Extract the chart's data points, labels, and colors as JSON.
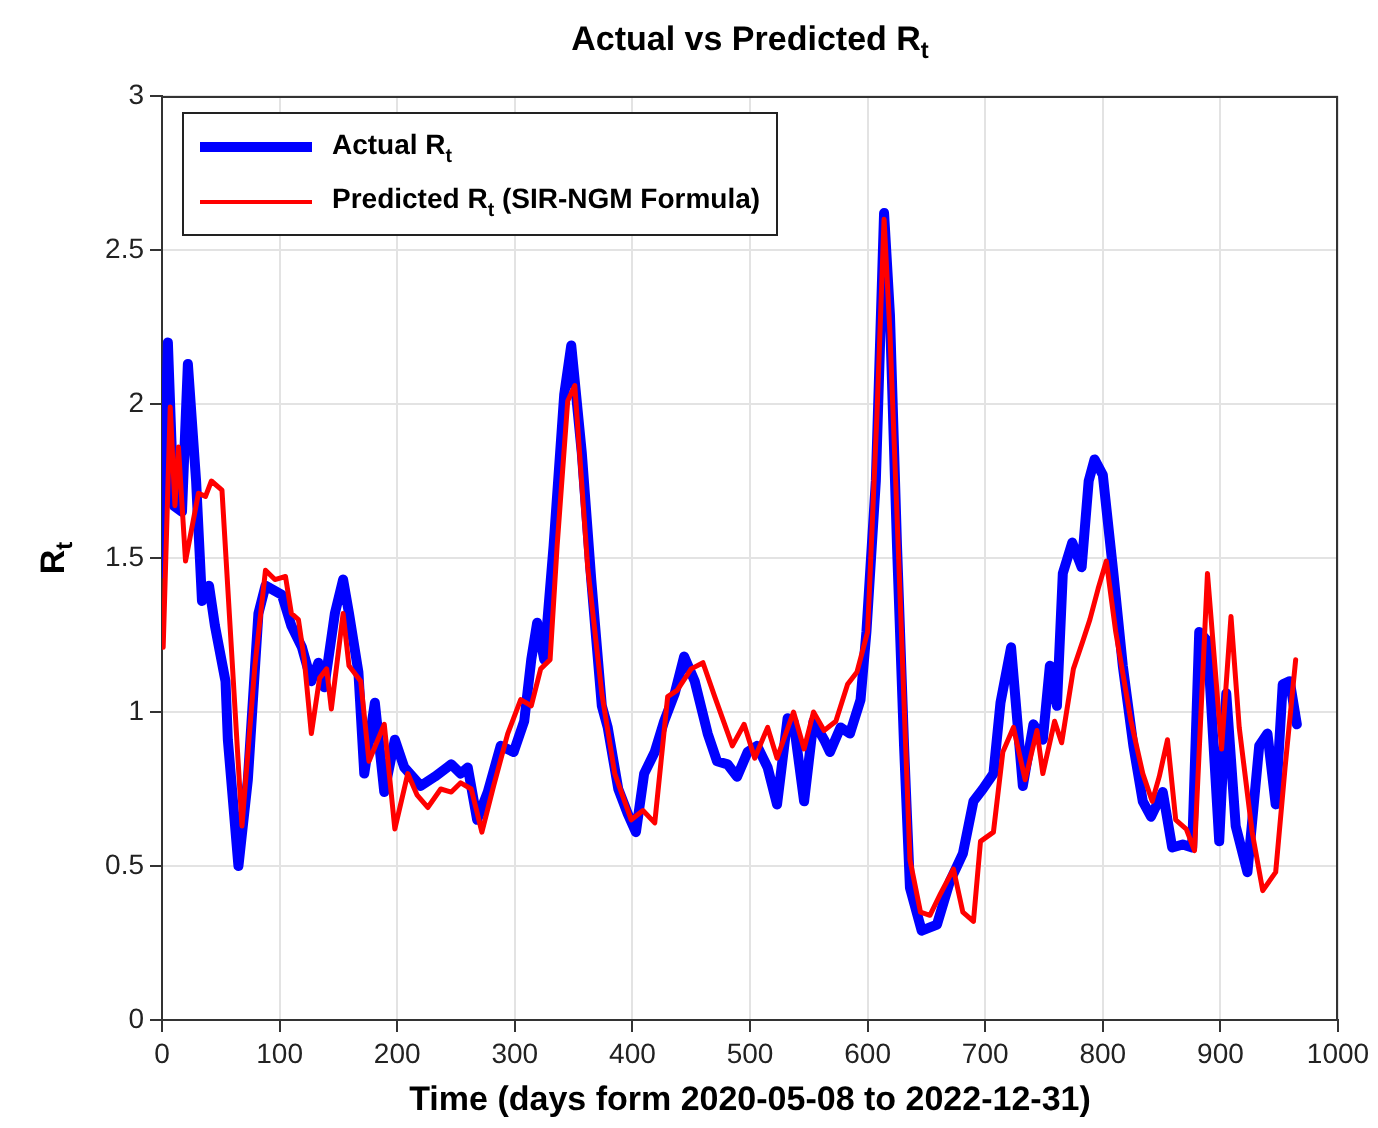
{
  "chart_data": {
    "type": "line",
    "title": "Actual vs Predicted R$_{t}$",
    "xlabel": "Time (days form 2020-05-08 to 2022-12-31)",
    "ylabel": "R$_{t}$",
    "xlim": [
      0,
      1000
    ],
    "xticks": [
      0,
      100,
      200,
      300,
      400,
      500,
      600,
      700,
      800,
      900,
      1000
    ],
    "ylim": [
      0,
      3
    ],
    "yticks": [
      0,
      0.5,
      1,
      1.5,
      2,
      2.5,
      3
    ],
    "grid": true,
    "legend": "top left",
    "marker": "none",
    "line_style": "solid",
    "series": [
      {
        "name": "Actual R$_{t}$",
        "color": "#0000ff",
        "x": [
          0,
          5,
          10,
          17,
          22,
          29,
          34,
          40,
          45,
          54,
          56,
          65,
          73,
          82,
          88,
          102,
          110,
          119,
          127,
          133,
          138,
          147,
          154,
          159,
          167,
          172,
          181,
          189,
          198,
          206,
          220,
          232,
          246,
          254,
          260,
          268,
          277,
          288,
          299,
          308,
          314,
          319,
          325,
          333,
          342,
          348,
          357,
          365,
          374,
          379,
          388,
          396,
          403,
          410,
          419,
          427,
          436,
          444,
          453,
          464,
          472,
          481,
          489,
          498,
          506,
          515,
          523,
          532,
          537,
          546,
          554,
          563,
          568,
          577,
          585,
          594,
          599,
          607,
          614,
          619,
          625,
          631,
          636,
          646,
          659,
          670,
          681,
          690,
          698,
          707,
          713,
          722,
          732,
          741,
          749,
          755,
          761,
          766,
          774,
          782,
          788,
          793,
          800,
          809,
          817,
          826,
          834,
          841,
          851,
          859,
          868,
          876,
          882,
          889,
          899,
          905,
          913,
          923,
          933,
          940,
          947,
          953,
          959,
          965
        ],
        "values": [
          1.45,
          2.2,
          1.67,
          1.65,
          2.13,
          1.75,
          1.36,
          1.41,
          1.28,
          1.1,
          0.91,
          0.5,
          0.78,
          1.32,
          1.41,
          1.38,
          1.28,
          1.21,
          1.1,
          1.16,
          1.08,
          1.32,
          1.43,
          1.32,
          1.13,
          0.8,
          1.03,
          0.74,
          0.91,
          0.82,
          0.76,
          0.79,
          0.83,
          0.8,
          0.82,
          0.65,
          0.74,
          0.89,
          0.87,
          0.97,
          1.17,
          1.29,
          1.17,
          1.54,
          2.03,
          2.19,
          1.84,
          1.43,
          1.02,
          0.95,
          0.75,
          0.67,
          0.61,
          0.8,
          0.87,
          0.97,
          1.06,
          1.18,
          1.1,
          0.93,
          0.84,
          0.83,
          0.79,
          0.87,
          0.89,
          0.82,
          0.7,
          0.98,
          0.97,
          0.71,
          0.97,
          0.91,
          0.87,
          0.95,
          0.93,
          1.04,
          1.26,
          1.75,
          2.62,
          2.29,
          1.54,
          0.89,
          0.43,
          0.29,
          0.31,
          0.45,
          0.54,
          0.71,
          0.75,
          0.8,
          1.03,
          1.21,
          0.76,
          0.96,
          0.91,
          1.15,
          1.02,
          1.45,
          1.55,
          1.47,
          1.75,
          1.82,
          1.77,
          1.45,
          1.15,
          0.89,
          0.71,
          0.66,
          0.74,
          0.56,
          0.57,
          0.56,
          1.26,
          1.23,
          0.58,
          1.06,
          0.63,
          0.48,
          0.89,
          0.93,
          0.7,
          1.09,
          1.1,
          0.96
        ]
      },
      {
        "name": "Predicted R$_{t}$ (SIR-NGM Formula)",
        "color": "#ff0000",
        "x": [
          1,
          7,
          11,
          14,
          20,
          31,
          37,
          42,
          51,
          68,
          79,
          88,
          96,
          105,
          110,
          116,
          121,
          127,
          134,
          140,
          144,
          154,
          159,
          169,
          176,
          189,
          198,
          209,
          217,
          226,
          237,
          246,
          254,
          263,
          272,
          282,
          294,
          305,
          314,
          322,
          330,
          336,
          345,
          351,
          362,
          374,
          385,
          399,
          409,
          419,
          430,
          438,
          450,
          460,
          470,
          485,
          495,
          504,
          515,
          523,
          537,
          546,
          554,
          563,
          573,
          583,
          591,
          600,
          608,
          614,
          619,
          626,
          636,
          645,
          653,
          662,
          673,
          681,
          690,
          696,
          707,
          715,
          724,
          734,
          744,
          749,
          759,
          765,
          775,
          783,
          789,
          796,
          803,
          811,
          824,
          834,
          842,
          848,
          855,
          862,
          871,
          878,
          889,
          901,
          909,
          916,
          927,
          936,
          947,
          955,
          964
        ],
        "values": [
          1.21,
          1.99,
          1.67,
          1.86,
          1.49,
          1.71,
          1.7,
          1.75,
          1.72,
          0.63,
          1.15,
          1.46,
          1.43,
          1.44,
          1.32,
          1.3,
          1.17,
          0.93,
          1.11,
          1.14,
          1.01,
          1.32,
          1.15,
          1.1,
          0.84,
          0.96,
          0.62,
          0.8,
          0.73,
          0.69,
          0.75,
          0.74,
          0.77,
          0.75,
          0.61,
          0.76,
          0.93,
          1.04,
          1.02,
          1.14,
          1.17,
          1.54,
          2.01,
          2.06,
          1.47,
          1.06,
          0.8,
          0.65,
          0.68,
          0.64,
          1.05,
          1.07,
          1.14,
          1.16,
          1.05,
          0.89,
          0.96,
          0.85,
          0.95,
          0.85,
          1.0,
          0.88,
          1.0,
          0.94,
          0.97,
          1.09,
          1.13,
          1.26,
          1.97,
          2.6,
          2.23,
          1.54,
          0.52,
          0.35,
          0.34,
          0.41,
          0.49,
          0.35,
          0.32,
          0.58,
          0.61,
          0.87,
          0.95,
          0.78,
          0.94,
          0.8,
          0.97,
          0.9,
          1.14,
          1.23,
          1.3,
          1.4,
          1.49,
          1.26,
          0.97,
          0.8,
          0.71,
          0.79,
          0.91,
          0.65,
          0.62,
          0.55,
          1.45,
          0.88,
          1.31,
          0.95,
          0.61,
          0.42,
          0.48,
          0.82,
          1.17
        ]
      }
    ]
  }
}
